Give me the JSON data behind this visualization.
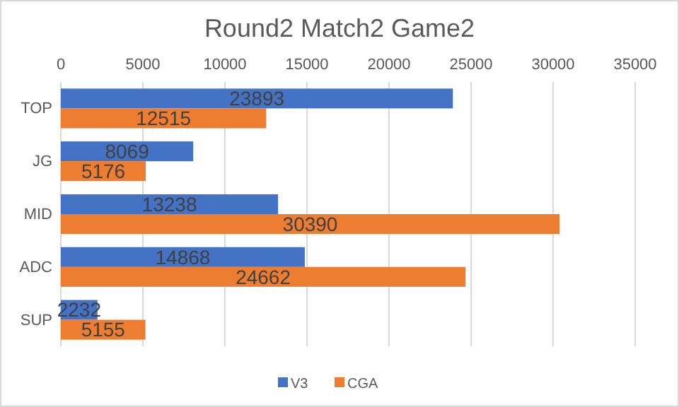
{
  "chart_data": {
    "type": "bar",
    "orientation": "horizontal",
    "title": "Round2 Match2 Game2",
    "categories": [
      "TOP",
      "JG",
      "MID",
      "ADC",
      "SUP"
    ],
    "series": [
      {
        "name": "V3",
        "color": "#4472c4",
        "values": [
          23893,
          8069,
          13238,
          14868,
          2232
        ]
      },
      {
        "name": "CGA",
        "color": "#ed7d31",
        "values": [
          12515,
          5176,
          30390,
          24662,
          5155
        ]
      }
    ],
    "xlim": [
      0,
      35000
    ],
    "xticks": [
      0,
      5000,
      10000,
      15000,
      20000,
      25000,
      30000,
      35000
    ],
    "grid": "x",
    "legend": "bottom",
    "data_labels": true
  }
}
